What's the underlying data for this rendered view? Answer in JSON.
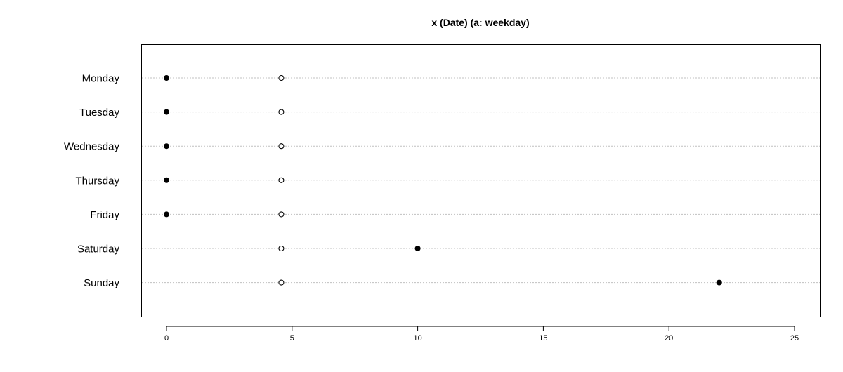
{
  "chart_data": {
    "type": "scatter",
    "title": "x (Date) (a: weekday)",
    "categories": [
      "Monday",
      "Tuesday",
      "Wednesday",
      "Thursday",
      "Friday",
      "Saturday",
      "Sunday"
    ],
    "series": [
      {
        "marker": "filled",
        "values": [
          0,
          0,
          0,
          0,
          0,
          10,
          22
        ]
      },
      {
        "marker": "open",
        "values": [
          4.57,
          4.57,
          4.57,
          4.57,
          4.57,
          4.57,
          4.57
        ]
      }
    ],
    "xticks": [
      0,
      5,
      10,
      15,
      20,
      25
    ],
    "xlim": [
      -1,
      26
    ],
    "grid": "horizontal dotted lines per category",
    "colors": {
      "points": "#000000",
      "grid": "#c0c0c0",
      "frame": "#000000"
    }
  }
}
